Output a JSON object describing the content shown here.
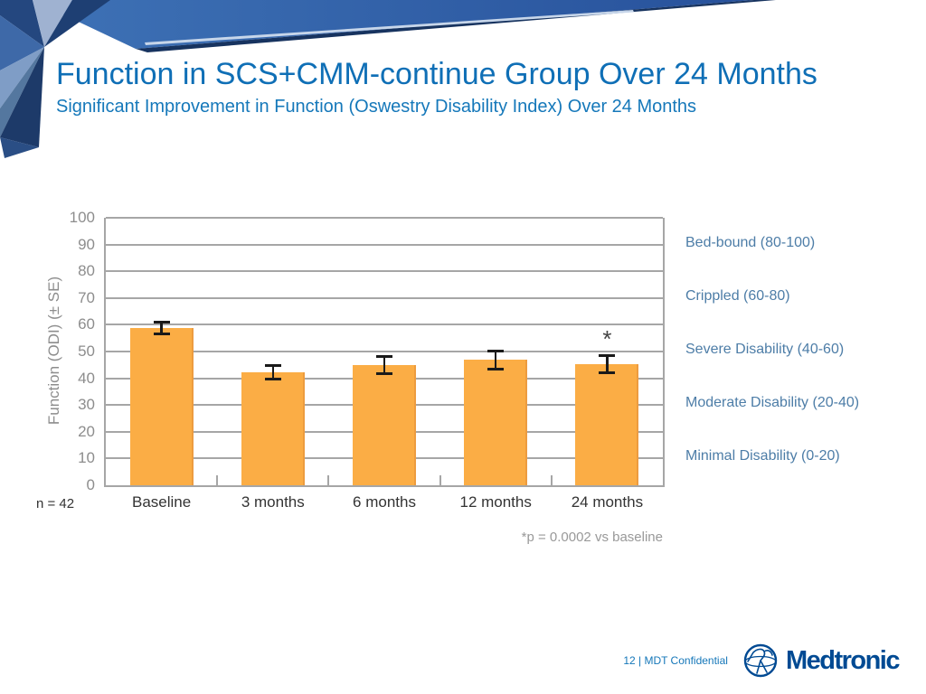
{
  "slide": {
    "title": "Function in SCS+CMM-continue Group Over 24 Months",
    "subtitle": "Significant Improvement in Function (Oswestry Disability Index) Over 24 Months",
    "colors": {
      "title": "#0F6FB6",
      "subtitle": "#1578BA",
      "band_blue": "#3E72B6",
      "band_blue_dark": "#27519B",
      "band_navy": "#17335F",
      "logo_navy": "#004A93",
      "footer_text": "#1577B9"
    }
  },
  "chart_data": {
    "type": "bar",
    "title": "",
    "xlabel": "",
    "ylabel": "Function (ODI) (± SE)",
    "ylim": [
      0,
      100
    ],
    "ytick_step": 10,
    "grid": true,
    "legend": "none",
    "categories": [
      "Baseline",
      "3 months",
      "6 months",
      "12 months",
      "24 months"
    ],
    "values": [
      58.8,
      42.3,
      44.8,
      46.8,
      45.2
    ],
    "errors": [
      2.2,
      2.5,
      3.2,
      3.4,
      3.2
    ],
    "annotations": {
      "significance_marker": "*",
      "significant_category": "24 months",
      "footnote": "*p = 0.0002 vs baseline",
      "sample_size": "n = 42"
    },
    "severity_bands": [
      {
        "label": "Bed-bound (80-100)",
        "center": 90
      },
      {
        "label": "Crippled (60-80)",
        "center": 70
      },
      {
        "label": "Severe Disability (40-60)",
        "center": 50
      },
      {
        "label": "Moderate Disability (20-40)",
        "center": 30
      },
      {
        "label": "Minimal Disability (0-20)",
        "center": 10
      }
    ],
    "colors": {
      "bar": "#FBAD45",
      "bar_edge": "#ED9C3F",
      "error": "#1A1A1A",
      "grid": "#A6A6A6",
      "axis_text": "#8D8D8D",
      "category_text": "#333333",
      "severity_text": "#4D7DA7",
      "footnote_text": "#999999"
    }
  },
  "footer": {
    "page_label": "12 | MDT Confidential",
    "logo_text": "Medtronic"
  }
}
